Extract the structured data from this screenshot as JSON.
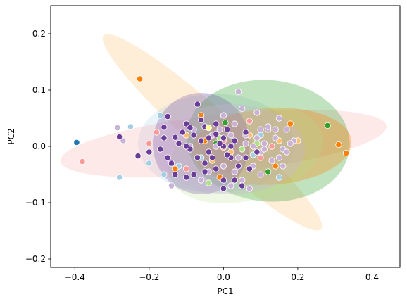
{
  "chart_data": {
    "type": "scatter",
    "xlabel": "PC1",
    "ylabel": "PC2",
    "xlim": [
      -0.465,
      0.475
    ],
    "ylim": [
      -0.215,
      0.25
    ],
    "xticks": [
      -0.4,
      -0.2,
      0.0,
      0.2,
      0.4
    ],
    "xtick_labels": [
      "−0.4",
      "−0.2",
      "0.0",
      "0.2",
      "0.4"
    ],
    "yticks": [
      -0.2,
      -0.1,
      0.0,
      0.1,
      0.2
    ],
    "ytick_labels": [
      "−0.2",
      "−0.1",
      "0.0",
      "0.1",
      "0.2"
    ],
    "grid": false,
    "legend": "none",
    "colors": {
      "dark_blue": "#1f77b4",
      "light_blue": "#a6cee3",
      "orange": "#ff7f00",
      "light_orange": "#fdbf6f",
      "green": "#33a02c",
      "light_green": "#b2df8a",
      "pink": "#fb9a99",
      "lavender": "#cab2d6",
      "purple": "#6a3d9a",
      "yellow": "#ffff99"
    },
    "ellipses": [
      {
        "color": "light_orange",
        "cx": -0.03,
        "cy": 0.025,
        "rx": 0.34,
        "ry": 0.045,
        "angle_deg": -30,
        "opacity": 0.28
      },
      {
        "color": "light_blue",
        "cx": -0.02,
        "cy": 0.005,
        "rx": 0.21,
        "ry": 0.088,
        "angle_deg": 0,
        "opacity": 0.25
      },
      {
        "color": "pink",
        "cx": 0.0,
        "cy": 0.005,
        "rx": 0.44,
        "ry": 0.052,
        "angle_deg": 4,
        "opacity": 0.22
      },
      {
        "color": "green",
        "cx": 0.12,
        "cy": 0.01,
        "rx": 0.22,
        "ry": 0.108,
        "angle_deg": -2,
        "opacity": 0.3
      },
      {
        "color": "orange",
        "cx": 0.13,
        "cy": 0.0,
        "rx": 0.215,
        "ry": 0.068,
        "angle_deg": 2,
        "opacity": 0.3
      },
      {
        "color": "light_green",
        "cx": 0.06,
        "cy": -0.015,
        "rx": 0.21,
        "ry": 0.082,
        "angle_deg": 8,
        "opacity": 0.22
      },
      {
        "color": "purple",
        "cx": -0.06,
        "cy": 0.005,
        "rx": 0.13,
        "ry": 0.09,
        "angle_deg": 0,
        "opacity": 0.25
      },
      {
        "color": "lavender",
        "cx": 0.02,
        "cy": -0.005,
        "rx": 0.2,
        "ry": 0.08,
        "angle_deg": 0,
        "opacity": 0.3
      }
    ],
    "series": [
      {
        "color": "dark_blue",
        "points": [
          [
            -0.395,
            0.007
          ]
        ]
      },
      {
        "color": "light_blue",
        "points": [
          [
            -0.25,
            0.035
          ],
          [
            -0.17,
            0.055
          ],
          [
            -0.2,
            -0.03
          ],
          [
            -0.28,
            -0.055
          ],
          [
            -0.16,
            -0.05
          ],
          [
            0.15,
            -0.055
          ],
          [
            -0.12,
            -0.035
          ],
          [
            -0.06,
            -0.02
          ],
          [
            0.08,
            -0.015
          ],
          [
            0.1,
            0.02
          ]
        ]
      },
      {
        "color": "orange",
        "points": [
          [
            -0.225,
            0.12
          ],
          [
            -0.06,
            0.055
          ],
          [
            -0.13,
            -0.04
          ],
          [
            0.0,
            -0.002
          ],
          [
            -0.01,
            -0.055
          ],
          [
            0.18,
            0.04
          ],
          [
            0.31,
            0.003
          ],
          [
            0.33,
            -0.012
          ],
          [
            0.14,
            -0.035
          ],
          [
            0.1,
            0.03
          ],
          [
            -0.05,
            0.01
          ]
        ]
      },
      {
        "color": "light_orange",
        "points": [
          [
            -0.03,
            -0.025
          ],
          [
            0.02,
            -0.01
          ],
          [
            0.07,
            0.02
          ],
          [
            0.15,
            0.01
          ],
          [
            0.2,
            0.01
          ],
          [
            -0.1,
            0.02
          ]
        ]
      },
      {
        "color": "green",
        "points": [
          [
            0.005,
            0.042
          ],
          [
            0.28,
            0.037
          ],
          [
            0.12,
            -0.045
          ],
          [
            -0.02,
            0.005
          ]
        ]
      },
      {
        "color": "light_green",
        "points": [
          [
            -0.04,
            -0.065
          ],
          [
            -0.01,
            0.015
          ],
          [
            0.05,
            -0.005
          ],
          [
            0.09,
            0.005
          ]
        ]
      },
      {
        "color": "pink",
        "points": [
          [
            -0.38,
            -0.027
          ],
          [
            -0.18,
            0.025
          ],
          [
            -0.1,
            -0.04
          ],
          [
            0.07,
            0.045
          ],
          [
            0.1,
            -0.02
          ],
          [
            0.0,
            0.01
          ],
          [
            -0.2,
            0.005
          ],
          [
            0.13,
            0.0
          ]
        ]
      },
      {
        "color": "lavender",
        "points": [
          [
            -0.285,
            0.033
          ],
          [
            -0.27,
            0.01
          ],
          [
            0.04,
            0.097
          ],
          [
            0.05,
            0.067
          ],
          [
            0.09,
            0.06
          ],
          [
            0.1,
            0.03
          ],
          [
            0.12,
            0.03
          ],
          [
            0.14,
            0.015
          ],
          [
            0.15,
            0.05
          ],
          [
            0.16,
            -0.005
          ],
          [
            0.17,
            0.03
          ],
          [
            0.19,
            0.01
          ],
          [
            0.1,
            -0.01
          ],
          [
            0.08,
            -0.035
          ],
          [
            0.06,
            0.005
          ],
          [
            0.02,
            0.02
          ],
          [
            -0.02,
            0.0
          ],
          [
            0.11,
            0.005
          ],
          [
            0.04,
            -0.02
          ],
          [
            0.15,
            -0.02
          ],
          [
            0.12,
            0.035
          ],
          [
            -0.09,
            0.0
          ],
          [
            0.09,
            0.015
          ],
          [
            0.03,
            -0.045
          ],
          [
            0.13,
            -0.025
          ],
          [
            0.16,
            -0.035
          ],
          [
            0.07,
            -0.075
          ],
          [
            0.0,
            -0.035
          ],
          [
            0.05,
            -0.06
          ],
          [
            -0.04,
            -0.045
          ],
          [
            0.1,
            -0.05
          ],
          [
            0.06,
            0.02
          ],
          [
            0.18,
            0.005
          ],
          [
            -0.01,
            0.03
          ],
          [
            0.02,
            -0.07
          ],
          [
            -0.03,
            0.02
          ],
          [
            0.11,
            -0.005
          ],
          [
            -0.14,
            -0.07
          ],
          [
            0.0,
            0.055
          ],
          [
            0.14,
            0.03
          ],
          [
            -0.06,
            -0.06
          ],
          [
            0.17,
            -0.01
          ],
          [
            0.08,
            0.0
          ],
          [
            0.03,
            0.04
          ],
          [
            -0.08,
            0.03
          ]
        ]
      },
      {
        "color": "purple",
        "points": [
          [
            -0.28,
            0.017
          ],
          [
            -0.23,
            -0.017
          ],
          [
            -0.16,
            0.034
          ],
          [
            -0.15,
            0.053
          ],
          [
            -0.13,
            0.016
          ],
          [
            -0.1,
            0.04
          ],
          [
            -0.09,
            0.033
          ],
          [
            -0.07,
            0.075
          ],
          [
            -0.06,
            0.047
          ],
          [
            -0.09,
            -0.005
          ],
          [
            -0.14,
            -0.03
          ],
          [
            -0.1,
            -0.055
          ],
          [
            -0.05,
            -0.03
          ],
          [
            -0.02,
            0.022
          ],
          [
            0.0,
            0.0
          ],
          [
            0.01,
            0.03
          ],
          [
            0.02,
            -0.02
          ],
          [
            -0.12,
            0.005
          ],
          [
            -0.16,
            0.015
          ],
          [
            -0.2,
            -0.01
          ],
          [
            -0.07,
            -0.02
          ],
          [
            -0.04,
            -0.01
          ],
          [
            -0.02,
            -0.04
          ],
          [
            -0.1,
            0.0
          ],
          [
            0.0,
            -0.06
          ],
          [
            0.06,
            -0.02
          ],
          [
            0.09,
            -0.01
          ],
          [
            0.03,
            0.01
          ],
          [
            -0.01,
            0.005
          ],
          [
            0.07,
            -0.04
          ],
          [
            -0.05,
            0.035
          ],
          [
            -0.03,
            -0.02
          ],
          [
            -0.02,
            0.04
          ],
          [
            0.04,
            -0.035
          ],
          [
            -0.08,
            -0.05
          ],
          [
            -0.11,
            0.025
          ],
          [
            0.05,
            -0.07
          ],
          [
            -0.15,
            -0.02
          ],
          [
            0.0,
            0.015
          ],
          [
            -0.04,
            0.015
          ],
          [
            0.02,
            0.0
          ],
          [
            -0.13,
            -0.05
          ],
          [
            -0.17,
            -0.005
          ],
          [
            0.01,
            -0.015
          ],
          [
            -0.06,
            0.01
          ],
          [
            -0.08,
            0.02
          ],
          [
            -0.0,
            -0.075
          ],
          [
            0.06,
            0.025
          ],
          [
            -0.05,
            -0.045
          ],
          [
            0.03,
            -0.06
          ]
        ]
      },
      {
        "color": "yellow",
        "points": [
          [
            -0.04,
            0.033
          ]
        ]
      }
    ]
  }
}
